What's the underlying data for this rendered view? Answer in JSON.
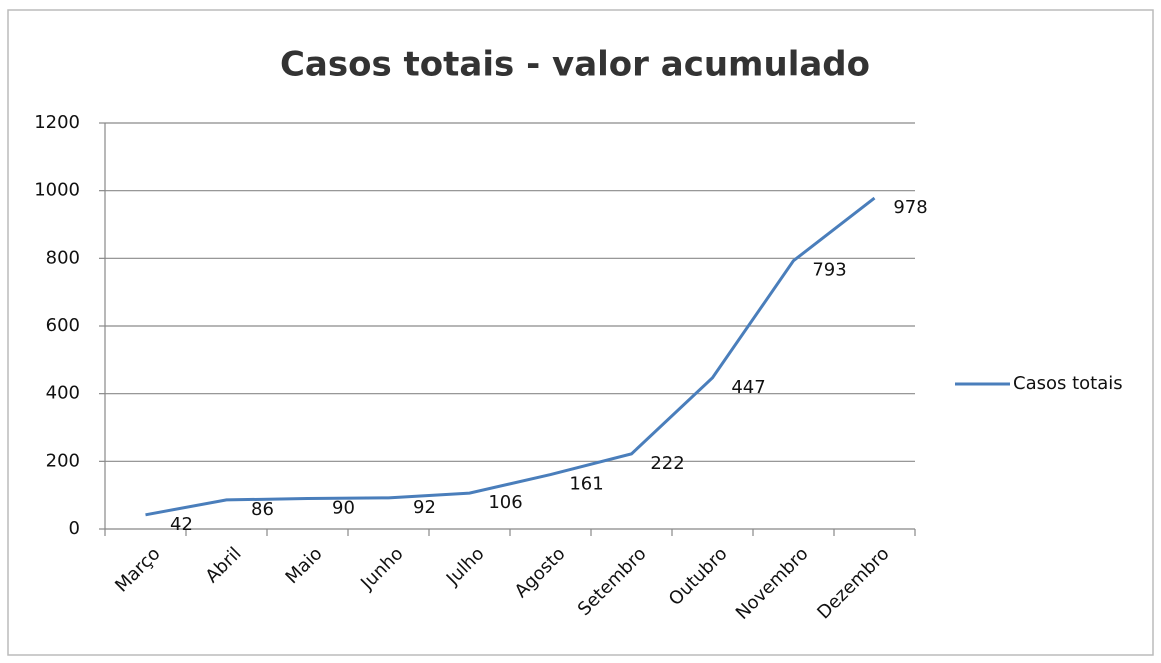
{
  "chart_data": {
    "type": "line",
    "title": "Casos totais - valor acumulado",
    "categories": [
      "Março",
      "Abril",
      "Maio",
      "Junho",
      "Julho",
      "Agosto",
      "Setembro",
      "Outubro",
      "Novembro",
      "Dezembro"
    ],
    "series": [
      {
        "name": "Casos totais",
        "color": "#4a7ebb",
        "values": [
          42,
          86,
          90,
          92,
          106,
          161,
          222,
          447,
          793,
          978
        ]
      }
    ],
    "ylim": [
      0,
      1200
    ],
    "yticks": [
      0,
      200,
      400,
      600,
      800,
      1000,
      1200
    ],
    "grid": true,
    "legend": "right"
  }
}
